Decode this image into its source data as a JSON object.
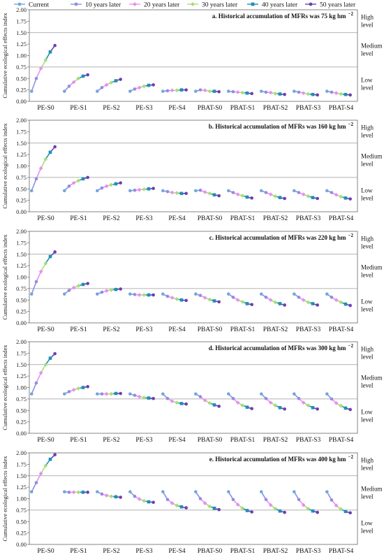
{
  "legend": [
    {
      "name": "Current",
      "color": "#6fa8dc"
    },
    {
      "name": "10 years later",
      "color": "#8e8ee0"
    },
    {
      "name": "20 years later",
      "color": "#e88ff0"
    },
    {
      "name": "30 years later",
      "color": "#a8dc78"
    },
    {
      "name": "40 years later",
      "color": "#1f8fb4"
    },
    {
      "name": "50 years later",
      "color": "#6a3fb0"
    }
  ],
  "level_labels": {
    "high": [
      "High",
      "level"
    ],
    "medium": [
      "Medium",
      "level"
    ],
    "low": [
      "Low",
      "level"
    ]
  },
  "chart_data": [
    {
      "type": "line",
      "title": "a. Historical accumulation of MFRs was 75 kg hm",
      "title_superscript": "−2",
      "ylabel": "Cumulative ecological effects index",
      "ylim": [
        0,
        2.0
      ],
      "yticks": [
        "0.00",
        "0.25",
        "0.50",
        "0.75",
        "1.00",
        "1.25",
        "1.50",
        "1.75",
        "2.00"
      ],
      "categories": [
        "PE-S0",
        "PE-S1",
        "PE-S2",
        "PE-S3",
        "PE-S4",
        "PBAT-S0",
        "PBAT-S1",
        "PBAT-S2",
        "PBAT-S3",
        "PBAT-S4"
      ],
      "series_names": [
        "Current",
        "10 years later",
        "20 years later",
        "30 years later",
        "40 years later",
        "50 years later"
      ],
      "values": [
        [
          0.22,
          0.5,
          0.72,
          0.9,
          1.08,
          1.22
        ],
        [
          0.22,
          0.33,
          0.42,
          0.5,
          0.55,
          0.58
        ],
        [
          0.22,
          0.3,
          0.36,
          0.41,
          0.45,
          0.48
        ],
        [
          0.22,
          0.27,
          0.3,
          0.33,
          0.35,
          0.36
        ],
        [
          0.22,
          0.23,
          0.24,
          0.24,
          0.25,
          0.25
        ],
        [
          0.22,
          0.25,
          0.24,
          0.22,
          0.22,
          0.21
        ],
        [
          0.22,
          0.21,
          0.2,
          0.19,
          0.18,
          0.17
        ],
        [
          0.22,
          0.2,
          0.19,
          0.17,
          0.16,
          0.15
        ],
        [
          0.22,
          0.2,
          0.18,
          0.16,
          0.15,
          0.14
        ],
        [
          0.22,
          0.2,
          0.18,
          0.16,
          0.15,
          0.14
        ]
      ]
    },
    {
      "type": "line",
      "title": "b. Historical accumulation of MFRs was 160 kg hm",
      "title_superscript": "−2",
      "ylabel": "Cumulative ecological effects index",
      "ylim": [
        0,
        2.0
      ],
      "yticks": [
        "0.00",
        "0.25",
        "0.50",
        "0.75",
        "1.00",
        "1.25",
        "1.50",
        "1.75",
        "2.00"
      ],
      "categories": [
        "PE-S0",
        "PE-S1",
        "PE-S2",
        "PE-S3",
        "PE-S4",
        "PBAT-S0",
        "PBAT-S1",
        "PBAT-S2",
        "PBAT-S3",
        "PBAT-S4"
      ],
      "series_names": [
        "Current",
        "10 years later",
        "20 years later",
        "30 years later",
        "40 years later",
        "50 years later"
      ],
      "values": [
        [
          0.46,
          0.72,
          0.95,
          1.15,
          1.3,
          1.42
        ],
        [
          0.46,
          0.56,
          0.63,
          0.68,
          0.72,
          0.75
        ],
        [
          0.46,
          0.52,
          0.56,
          0.59,
          0.61,
          0.63
        ],
        [
          0.46,
          0.47,
          0.48,
          0.49,
          0.5,
          0.51
        ],
        [
          0.46,
          0.44,
          0.42,
          0.41,
          0.4,
          0.4
        ],
        [
          0.46,
          0.47,
          0.43,
          0.4,
          0.37,
          0.35
        ],
        [
          0.46,
          0.42,
          0.38,
          0.35,
          0.32,
          0.3
        ],
        [
          0.46,
          0.42,
          0.38,
          0.34,
          0.31,
          0.29
        ],
        [
          0.46,
          0.42,
          0.38,
          0.34,
          0.31,
          0.29
        ],
        [
          0.46,
          0.42,
          0.37,
          0.33,
          0.3,
          0.28
        ]
      ]
    },
    {
      "type": "line",
      "title": "c. Historical accumulation of MFRs was 220 kg hm",
      "title_superscript": "−2",
      "ylabel": "Cumulative ecological effects index",
      "ylim": [
        0,
        2.0
      ],
      "yticks": [
        "0.00",
        "0.25",
        "0.50",
        "0.75",
        "1.00",
        "1.25",
        "1.50",
        "1.75",
        "2.00"
      ],
      "categories": [
        "PE-S0",
        "PE-S1",
        "PE-S2",
        "PE-S3",
        "PE-S4",
        "PBAT-S0",
        "PBAT-S1",
        "PBAT-S2",
        "PBAT-S3",
        "PBAT-S4"
      ],
      "series_names": [
        "Current",
        "10 years later",
        "20 years later",
        "30 years later",
        "40 years later",
        "50 years later"
      ],
      "values": [
        [
          0.63,
          0.9,
          1.12,
          1.3,
          1.45,
          1.55
        ],
        [
          0.63,
          0.71,
          0.77,
          0.81,
          0.84,
          0.86
        ],
        [
          0.63,
          0.67,
          0.7,
          0.72,
          0.73,
          0.74
        ],
        [
          0.63,
          0.62,
          0.61,
          0.61,
          0.61,
          0.61
        ],
        [
          0.63,
          0.58,
          0.55,
          0.52,
          0.5,
          0.49
        ],
        [
          0.63,
          0.6,
          0.55,
          0.51,
          0.48,
          0.46
        ],
        [
          0.63,
          0.56,
          0.5,
          0.46,
          0.42,
          0.4
        ],
        [
          0.63,
          0.56,
          0.5,
          0.45,
          0.42,
          0.39
        ],
        [
          0.63,
          0.56,
          0.5,
          0.45,
          0.42,
          0.39
        ],
        [
          0.63,
          0.56,
          0.5,
          0.45,
          0.41,
          0.38
        ]
      ]
    },
    {
      "type": "line",
      "title": "d. Historical accumulation of MFRs was 300 kg hm",
      "title_superscript": "−2",
      "ylabel": "Cumulative ecological effects index",
      "ylim": [
        0,
        2.0
      ],
      "yticks": [
        "0.00",
        "0.25",
        "0.50",
        "0.75",
        "1.00",
        "1.25",
        "1.50",
        "1.75",
        "2.00"
      ],
      "categories": [
        "PE-S0",
        "PE-S1",
        "PE-S2",
        "PE-S3",
        "PE-S4",
        "PBAT-S0",
        "PBAT-S1",
        "PBAT-S2",
        "PBAT-S3",
        "PBAT-S4"
      ],
      "series_names": [
        "Current",
        "10 years later",
        "20 years later",
        "30 years later",
        "40 years later",
        "50 years later"
      ],
      "values": [
        [
          0.86,
          1.1,
          1.32,
          1.5,
          1.64,
          1.74
        ],
        [
          0.86,
          0.91,
          0.95,
          0.98,
          1.0,
          1.02
        ],
        [
          0.86,
          0.86,
          0.86,
          0.86,
          0.87,
          0.87
        ],
        [
          0.86,
          0.83,
          0.8,
          0.78,
          0.77,
          0.76
        ],
        [
          0.86,
          0.76,
          0.7,
          0.67,
          0.65,
          0.64
        ],
        [
          0.86,
          0.8,
          0.72,
          0.66,
          0.62,
          0.59
        ],
        [
          0.86,
          0.76,
          0.67,
          0.61,
          0.57,
          0.54
        ],
        [
          0.86,
          0.76,
          0.67,
          0.61,
          0.56,
          0.53
        ],
        [
          0.86,
          0.76,
          0.67,
          0.61,
          0.56,
          0.53
        ],
        [
          0.86,
          0.75,
          0.66,
          0.6,
          0.55,
          0.52
        ]
      ]
    },
    {
      "type": "line",
      "title": "e. Historical accumulation of MFRs was 400 kg hm",
      "title_superscript": "−2",
      "ylabel": "Cumulative ecological effects index",
      "ylim": [
        0,
        2.0
      ],
      "yticks": [
        "0.00",
        "0.25",
        "0.50",
        "0.75",
        "1.00",
        "1.25",
        "1.50",
        "1.75",
        "2.00"
      ],
      "categories": [
        "PE-S0",
        "PE-S1",
        "PE-S2",
        "PE-S3",
        "PE-S4",
        "PBAT-S0",
        "PBAT-S1",
        "PBAT-S2",
        "PBAT-S3",
        "PBAT-S4"
      ],
      "series_names": [
        "Current",
        "10 years later",
        "20 years later",
        "30 years later",
        "40 years later",
        "50 years later"
      ],
      "values": [
        [
          1.15,
          1.35,
          1.55,
          1.72,
          1.86,
          1.96
        ],
        [
          1.15,
          1.14,
          1.14,
          1.14,
          1.14,
          1.14
        ],
        [
          1.15,
          1.1,
          1.07,
          1.05,
          1.04,
          1.03
        ],
        [
          1.15,
          1.05,
          0.99,
          0.95,
          0.93,
          0.92
        ],
        [
          1.15,
          0.98,
          0.9,
          0.85,
          0.82,
          0.8
        ],
        [
          1.15,
          1.0,
          0.9,
          0.83,
          0.79,
          0.76
        ],
        [
          1.15,
          0.98,
          0.87,
          0.79,
          0.74,
          0.71
        ],
        [
          1.15,
          0.98,
          0.86,
          0.78,
          0.73,
          0.7
        ],
        [
          1.15,
          0.98,
          0.86,
          0.78,
          0.73,
          0.7
        ],
        [
          1.15,
          0.97,
          0.85,
          0.77,
          0.72,
          0.69
        ]
      ]
    }
  ]
}
